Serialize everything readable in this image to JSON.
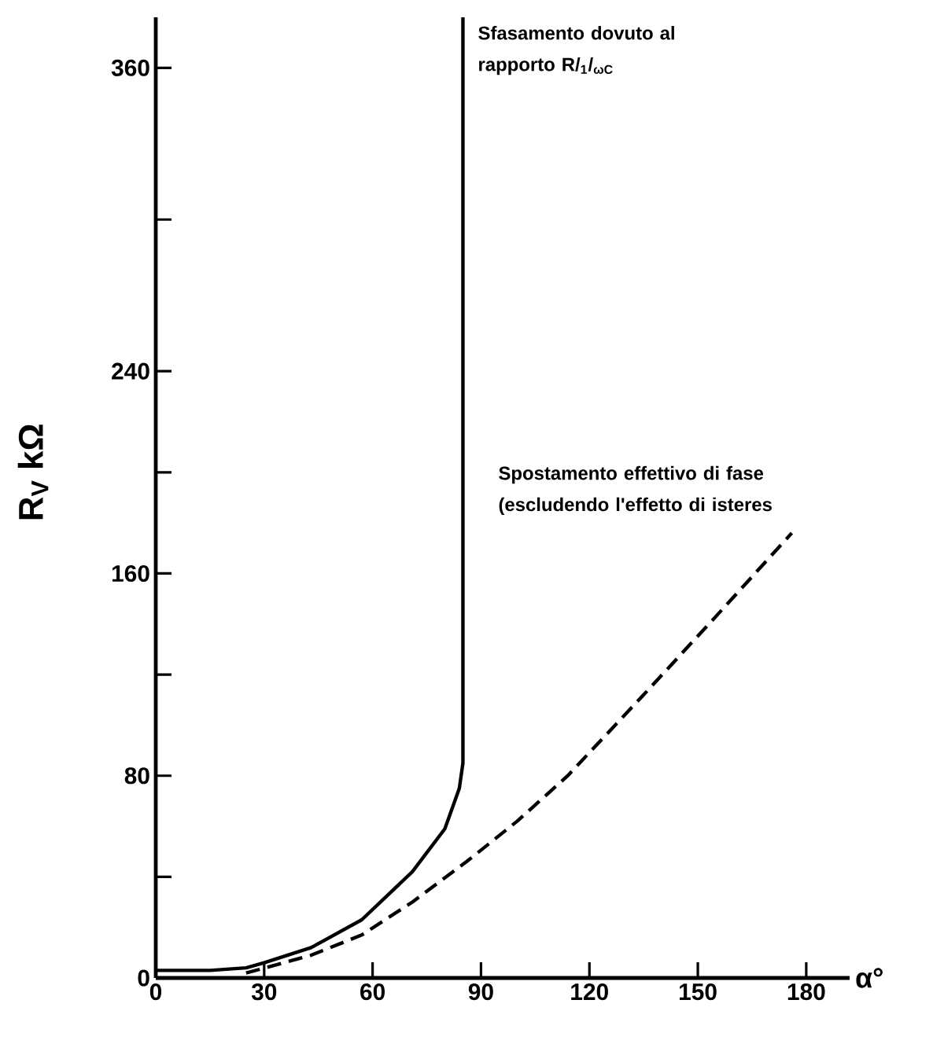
{
  "chart_data": {
    "type": "line",
    "xlabel": "α°",
    "ylabel": "R$_{V}$ kΩ",
    "xlim": [
      0,
      192
    ],
    "xticks": [
      0,
      30,
      60,
      90,
      120,
      150,
      180
    ],
    "ylim": [
      0,
      380
    ],
    "yticks": [
      0,
      {
        "value": 40,
        "label": null
      },
      80,
      {
        "value": 120,
        "label": null
      },
      160,
      {
        "value": 200,
        "label": null
      },
      240,
      {
        "value": 300,
        "label": null
      },
      360
    ],
    "marker": "none",
    "legend": false,
    "series": [
      {
        "name": "Sfasamento dovuto al rapporto R/$_{1}$/$_{ωC}$",
        "color": "#000000",
        "line_style": "solid",
        "x": [
          0,
          15,
          25,
          30,
          43,
          57,
          71,
          80,
          84,
          85,
          85
        ],
        "values": [
          3,
          3,
          4,
          6,
          12,
          23,
          42,
          59,
          75,
          85,
          380
        ]
      },
      {
        "name": "Spostamento effettivo di fase (escludendo l'effetto di isteres",
        "color": "#000000",
        "line_style": "dashed",
        "x": [
          25,
          29,
          43,
          57,
          71,
          86,
          100,
          114,
          135,
          155,
          176
        ],
        "values": [
          2,
          3.5,
          9,
          17,
          30,
          46,
          62,
          80,
          112,
          143,
          176
        ]
      }
    ]
  }
}
